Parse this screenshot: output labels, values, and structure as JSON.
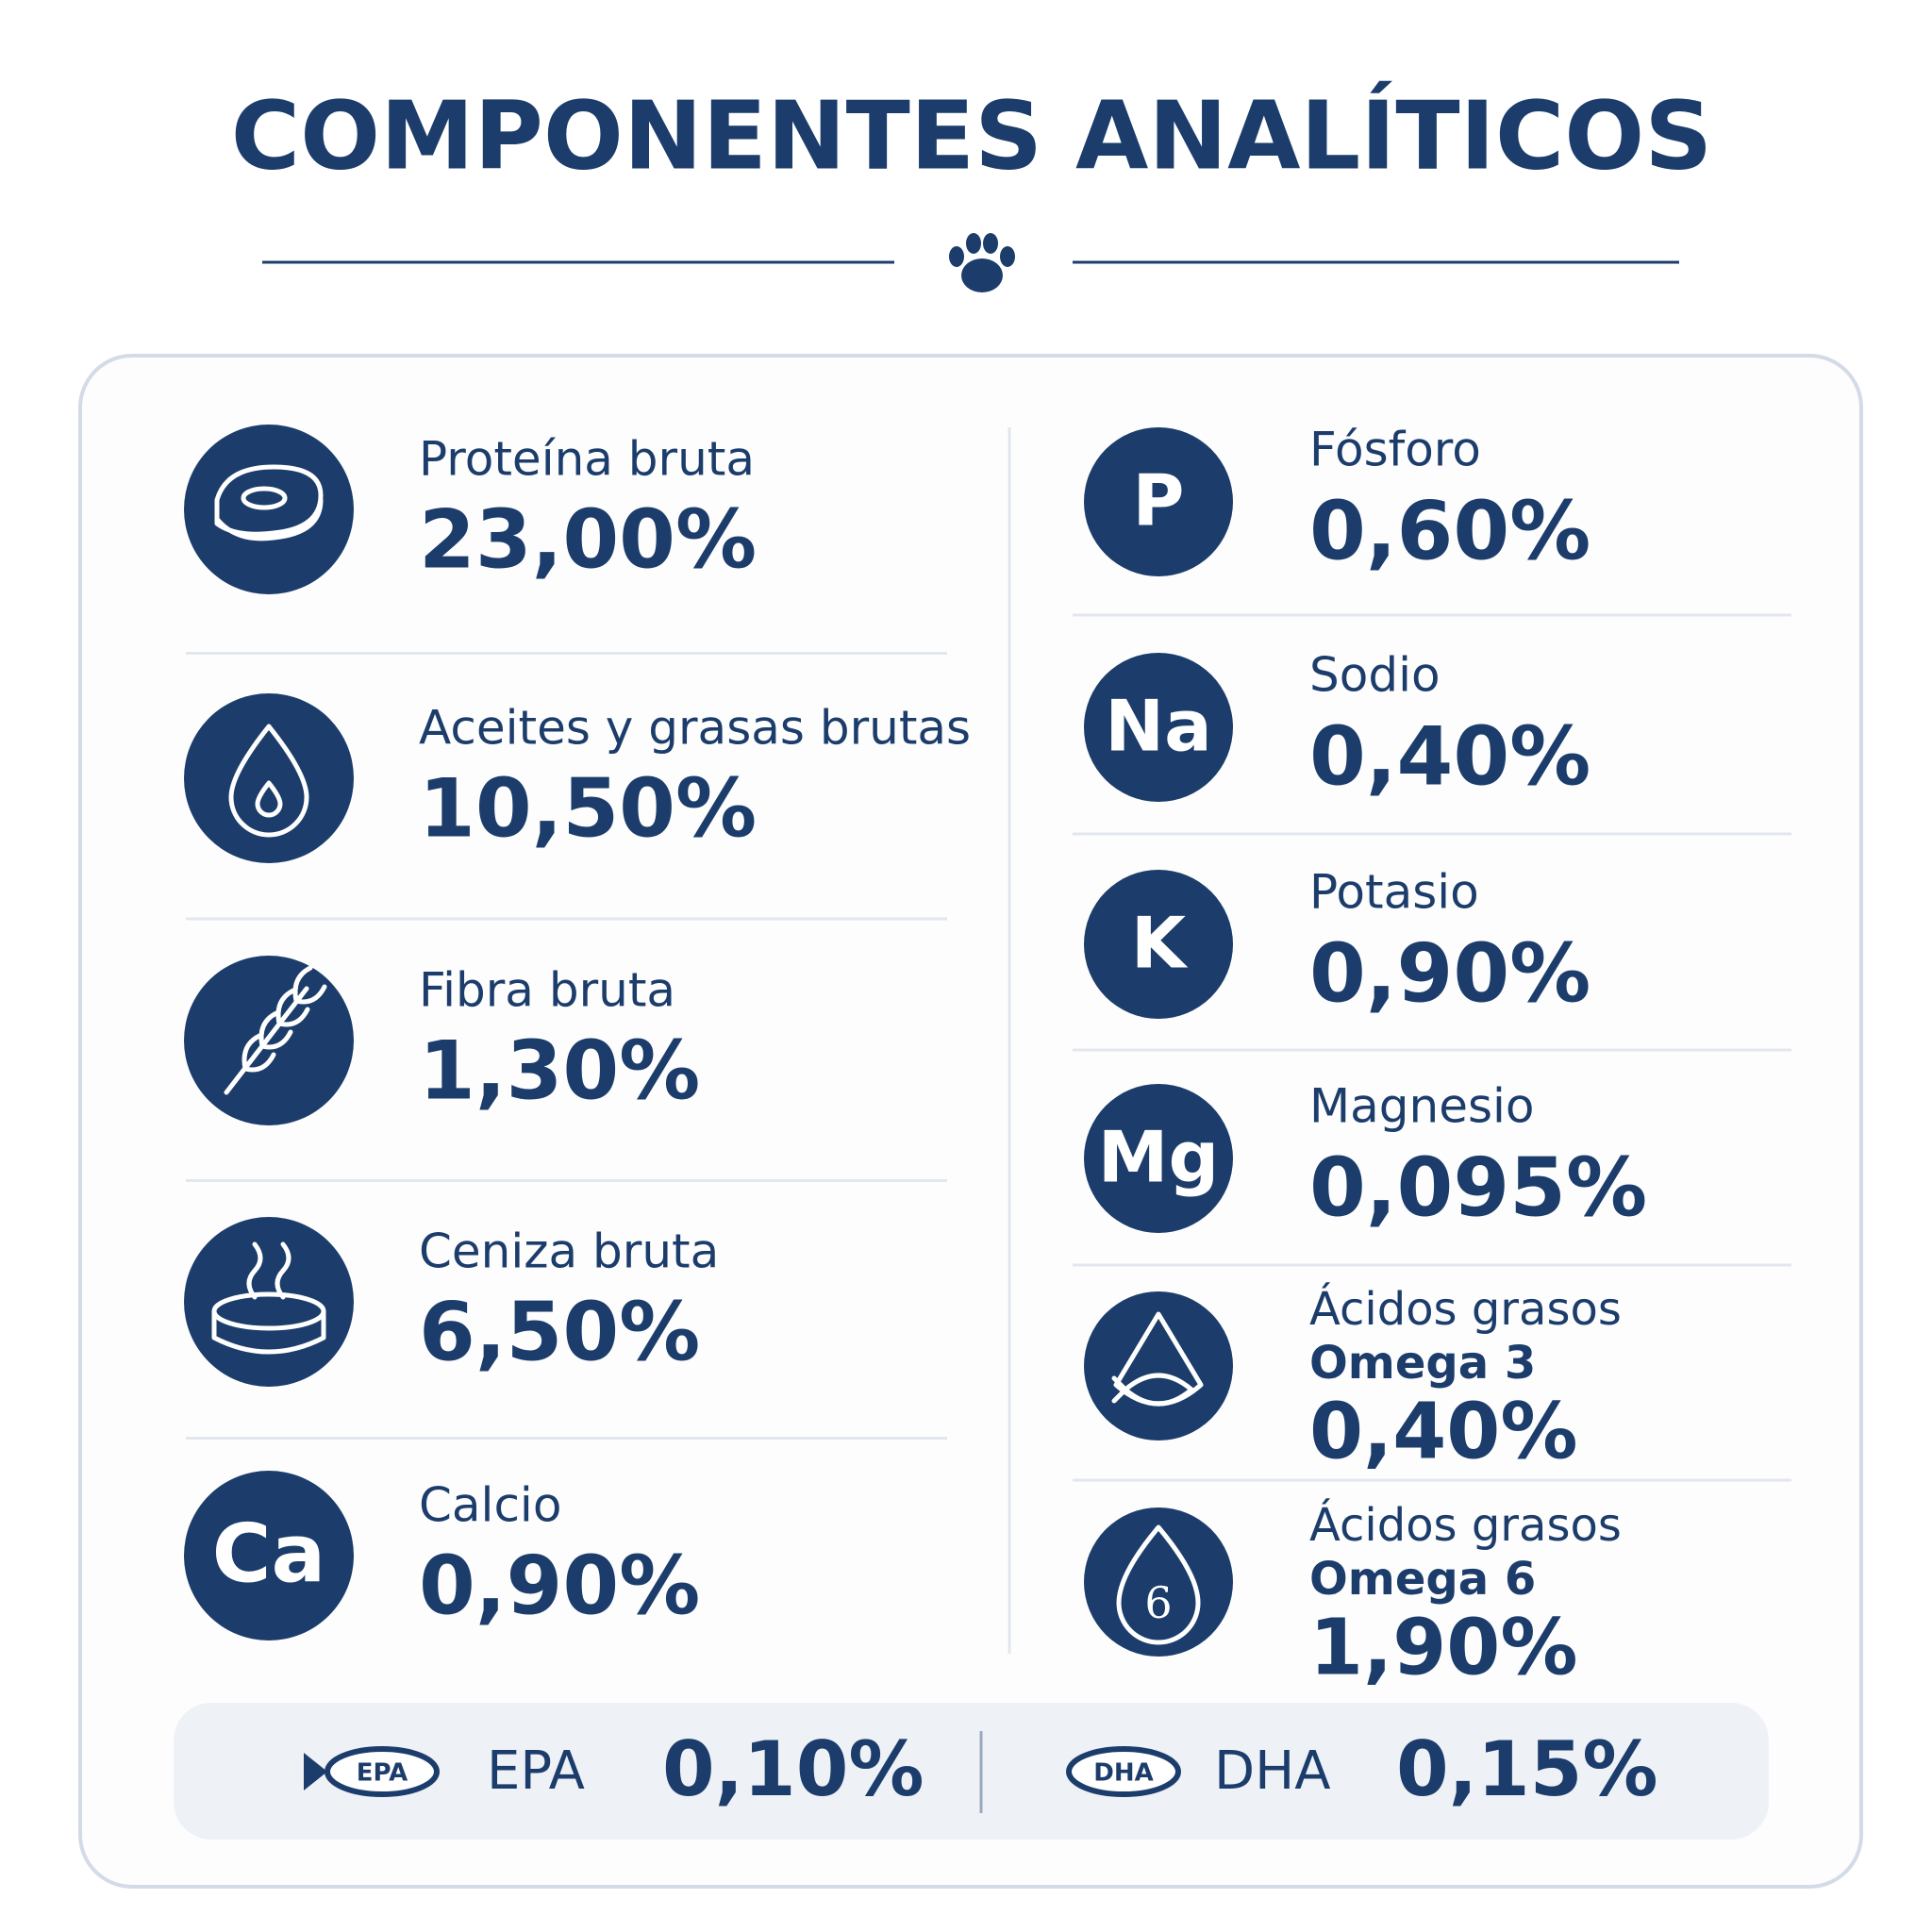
{
  "header": {
    "title": "COMPONENTES ANALÍTICOS"
  },
  "left_items": [
    {
      "name": "Proteína bruta",
      "value": "23,00%"
    },
    {
      "name": "Aceites y grasas brutas",
      "value": "10,50%"
    },
    {
      "name": "Fibra bruta",
      "value": "1,30%"
    },
    {
      "name": "Ceniza bruta",
      "value": "6,50%"
    },
    {
      "symbol": "Ca",
      "name": "Calcio",
      "value": "0,90%"
    }
  ],
  "right_items": [
    {
      "symbol": "P",
      "name": "Fósforo",
      "value": "0,60%"
    },
    {
      "symbol": "Na",
      "name": "Sodio",
      "value": "0,40%"
    },
    {
      "symbol": "K",
      "name": "Potasio",
      "value": "0,90%"
    },
    {
      "symbol": "Mg",
      "name": "Magnesio",
      "value": "0,095%"
    },
    {
      "name": "Ácidos grasos",
      "subname": "Omega 3",
      "value": "0,40%"
    },
    {
      "symbol": "6",
      "name": "Ácidos grasos",
      "subname": "Omega 6",
      "value": "1,90%"
    }
  ],
  "footer": [
    {
      "badge": "EPA",
      "name": "EPA",
      "value": "0,10%"
    },
    {
      "badge": "DHA",
      "name": "DHA",
      "value": "0,15%"
    }
  ]
}
